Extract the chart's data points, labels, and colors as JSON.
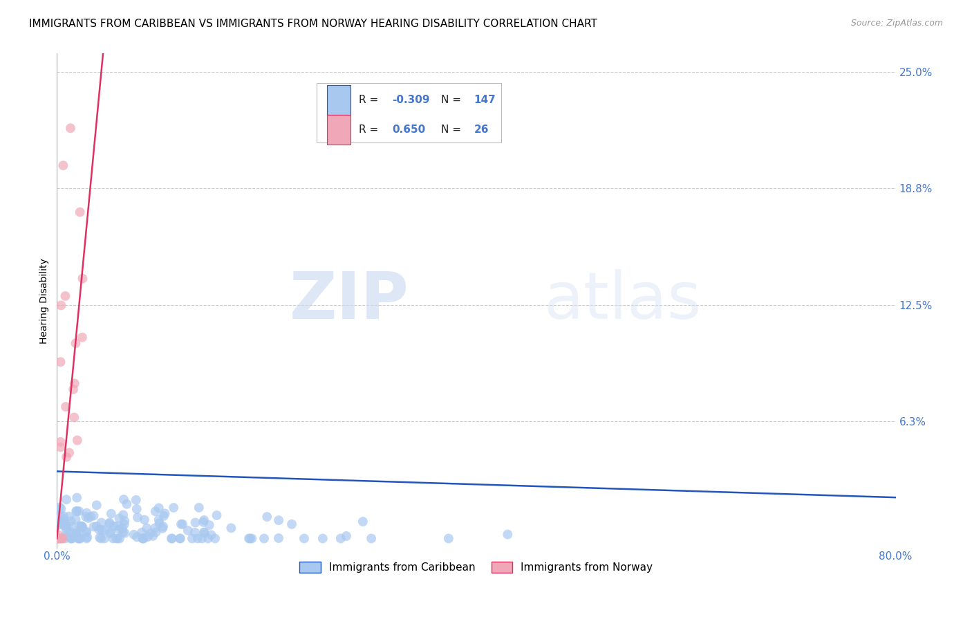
{
  "title": "IMMIGRANTS FROM CARIBBEAN VS IMMIGRANTS FROM NORWAY HEARING DISABILITY CORRELATION CHART",
  "source": "Source: ZipAtlas.com",
  "ylabel": "Hearing Disability",
  "watermark_zip": "ZIP",
  "watermark_atlas": "atlas",
  "xlim": [
    0.0,
    0.8
  ],
  "ylim": [
    -0.005,
    0.26
  ],
  "ytick_vals": [
    0.063,
    0.125,
    0.188,
    0.25
  ],
  "ytick_labels": [
    "6.3%",
    "12.5%",
    "18.8%",
    "25.0%"
  ],
  "xtick_vals": [
    0.0,
    0.8
  ],
  "xtick_labels": [
    "0.0%",
    "80.0%"
  ],
  "caribbean_R": -0.309,
  "caribbean_N": 147,
  "norway_R": 0.65,
  "norway_N": 26,
  "caribbean_color": "#a8c8f0",
  "norway_color": "#f0a8b8",
  "caribbean_line_color": "#2255bb",
  "norway_line_color": "#e03060",
  "legend_label_caribbean": "Immigrants from Caribbean",
  "legend_label_norway": "Immigrants from Norway",
  "title_fontsize": 11,
  "axis_label_fontsize": 10,
  "tick_fontsize": 11,
  "legend_fontsize": 11,
  "source_fontsize": 9,
  "background_color": "#ffffff",
  "grid_color": "#cccccc",
  "tick_color": "#4477cc",
  "scatter_size": 100,
  "scatter_alpha": 0.7,
  "norway_line_start_x": 0.0,
  "norway_line_start_y": 0.0,
  "norway_line_end_x": 0.044,
  "norway_line_end_y": 0.26,
  "caribbean_line_start_x": 0.0,
  "caribbean_line_start_y": 0.036,
  "caribbean_line_end_x": 0.8,
  "caribbean_line_end_y": 0.022
}
